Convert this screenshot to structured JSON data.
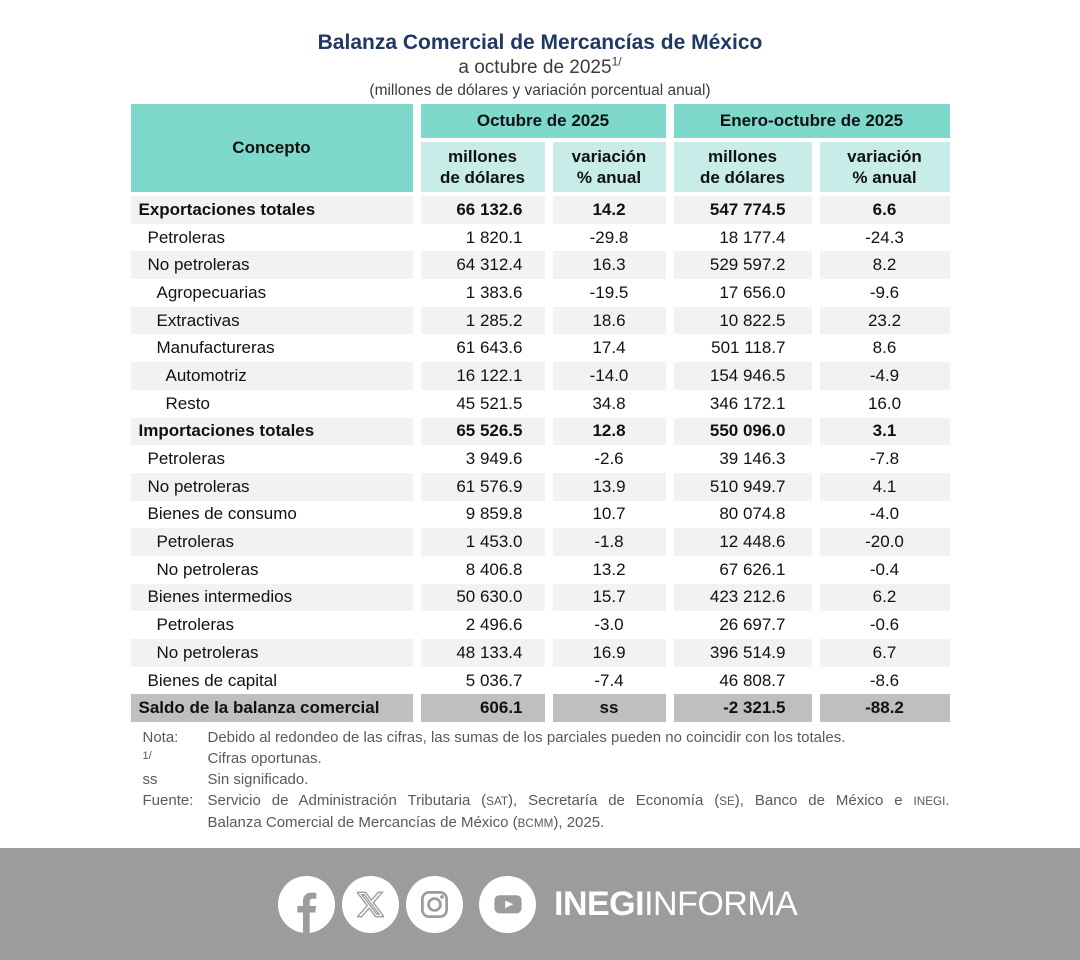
{
  "header": {
    "title": "Balanza Comercial de Mercancías de México",
    "subtitle": "a octubre de 2025",
    "subtitle_sup": "1/",
    "units": "(millones de dólares y variación porcentual anual)"
  },
  "table_header": {
    "concept": "Concepto",
    "groups": [
      "Octubre de 2025",
      "Enero-octubre de 2025"
    ],
    "measures": [
      {
        "l1": "millones",
        "l2": "de dólares"
      },
      {
        "l1": "variación",
        "l2": "% anual"
      },
      {
        "l1": "millones",
        "l2": "de dólares"
      },
      {
        "l1": "variación",
        "l2": "% anual"
      }
    ]
  },
  "chart_data": {
    "type": "table",
    "title": "Balanza Comercial de Mercancías de México",
    "subtitle": "a octubre de 2025 1/",
    "units": "millones de dólares y variación porcentual anual",
    "column_groups": [
      "Octubre de 2025",
      "Enero-octubre de 2025"
    ],
    "columns": [
      "Concepto",
      "millones de dólares",
      "variación % anual",
      "millones de dólares",
      "variación % anual"
    ],
    "rows": [
      {
        "label": "Exportaciones totales",
        "level": 0,
        "bold": true,
        "saldo": false,
        "values": [
          "66 132.6",
          "14.2",
          "547 774.5",
          "6.6"
        ]
      },
      {
        "label": "Petroleras",
        "level": 1,
        "bold": false,
        "saldo": false,
        "values": [
          "1 820.1",
          "-29.8",
          "18 177.4",
          "-24.3"
        ]
      },
      {
        "label": "No petroleras",
        "level": 1,
        "bold": false,
        "saldo": false,
        "values": [
          "64 312.4",
          "16.3",
          "529 597.2",
          "8.2"
        ]
      },
      {
        "label": "Agropecuarias",
        "level": 2,
        "bold": false,
        "saldo": false,
        "values": [
          "1 383.6",
          "-19.5",
          "17 656.0",
          "-9.6"
        ]
      },
      {
        "label": "Extractivas",
        "level": 2,
        "bold": false,
        "saldo": false,
        "values": [
          "1 285.2",
          "18.6",
          "10 822.5",
          "23.2"
        ]
      },
      {
        "label": "Manufactureras",
        "level": 2,
        "bold": false,
        "saldo": false,
        "values": [
          "61 643.6",
          "17.4",
          "501 118.7",
          "8.6"
        ]
      },
      {
        "label": "Automotriz",
        "level": 3,
        "bold": false,
        "saldo": false,
        "values": [
          "16 122.1",
          "-14.0",
          "154 946.5",
          "-4.9"
        ]
      },
      {
        "label": "Resto",
        "level": 3,
        "bold": false,
        "saldo": false,
        "values": [
          "45 521.5",
          "34.8",
          "346 172.1",
          "16.0"
        ]
      },
      {
        "label": "Importaciones totales",
        "level": 0,
        "bold": true,
        "saldo": false,
        "values": [
          "65 526.5",
          "12.8",
          "550 096.0",
          "3.1"
        ]
      },
      {
        "label": "Petroleras",
        "level": 1,
        "bold": false,
        "saldo": false,
        "values": [
          "3 949.6",
          "-2.6",
          "39 146.3",
          "-7.8"
        ]
      },
      {
        "label": "No petroleras",
        "level": 1,
        "bold": false,
        "saldo": false,
        "values": [
          "61 576.9",
          "13.9",
          "510 949.7",
          "4.1"
        ]
      },
      {
        "label": "Bienes de consumo",
        "level": 1,
        "bold": false,
        "saldo": false,
        "values": [
          "9 859.8",
          "10.7",
          "80 074.8",
          "-4.0"
        ]
      },
      {
        "label": "Petroleras",
        "level": 2,
        "bold": false,
        "saldo": false,
        "values": [
          "1 453.0",
          "-1.8",
          "12 448.6",
          "-20.0"
        ]
      },
      {
        "label": "No petroleras",
        "level": 2,
        "bold": false,
        "saldo": false,
        "values": [
          "8 406.8",
          "13.2",
          "67 626.1",
          "-0.4"
        ]
      },
      {
        "label": "Bienes intermedios",
        "level": 1,
        "bold": false,
        "saldo": false,
        "values": [
          "50 630.0",
          "15.7",
          "423 212.6",
          "6.2"
        ]
      },
      {
        "label": "Petroleras",
        "level": 2,
        "bold": false,
        "saldo": false,
        "values": [
          "2 496.6",
          "-3.0",
          "26 697.7",
          "-0.6"
        ]
      },
      {
        "label": "No petroleras",
        "level": 2,
        "bold": false,
        "saldo": false,
        "values": [
          "48 133.4",
          "16.9",
          "396 514.9",
          "6.7"
        ]
      },
      {
        "label": "Bienes de capital",
        "level": 1,
        "bold": false,
        "saldo": false,
        "values": [
          "5 036.7",
          "-7.4",
          "46 808.7",
          "-8.6"
        ]
      },
      {
        "label": "Saldo de la balanza comercial",
        "level": 0,
        "bold": true,
        "saldo": true,
        "values": [
          "606.1",
          "ss",
          "-2 321.5",
          "-88.2"
        ]
      }
    ]
  },
  "notes": [
    {
      "label": "Nota:",
      "sup": false,
      "justify": false,
      "segments": [
        {
          "t": "Debido al redondeo de las cifras, las sumas de los parciales pueden no coincidir con los totales."
        }
      ]
    },
    {
      "label": "1/",
      "sup": true,
      "justify": false,
      "segments": [
        {
          "t": "Cifras oportunas."
        }
      ]
    },
    {
      "label": "ss",
      "sup": false,
      "justify": false,
      "segments": [
        {
          "t": "Sin significado."
        }
      ]
    },
    {
      "label": "Fuente:",
      "sup": false,
      "justify": true,
      "segments": [
        {
          "t": "Servicio de Administración Tributaria ("
        },
        {
          "t": "SAT",
          "caps": true
        },
        {
          "t": "), Secretaría de Economía ("
        },
        {
          "t": "SE",
          "caps": true
        },
        {
          "t": "), Banco de México e "
        },
        {
          "t": "INEGI",
          "caps": true
        },
        {
          "t": "."
        }
      ]
    },
    {
      "label": "",
      "sup": false,
      "justify": false,
      "segments": [
        {
          "t": "Balanza Comercial de Mercancías de México ("
        },
        {
          "t": "BCMM",
          "caps": true
        },
        {
          "t": "), 2025."
        }
      ]
    }
  ],
  "footer": {
    "brand_bold": "INEGI",
    "brand_light": "INFORMA",
    "icons": [
      "facebook-icon",
      "x-twitter-icon",
      "instagram-icon",
      "youtube-icon"
    ]
  },
  "colors": {
    "navy": "#1F3864",
    "teal": "#7ED8CB",
    "tealLight": "#C8ECE7",
    "rowGray": "#F2F2F2",
    "saldoGray": "#BFBFBF",
    "footerGray": "#9C9C9C",
    "noteGray": "#595959"
  }
}
